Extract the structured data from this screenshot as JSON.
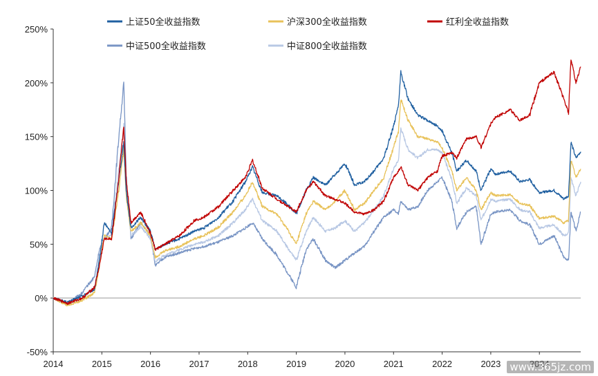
{
  "chart_data": {
    "type": "line",
    "title": "",
    "xlabel": "",
    "ylabel": "",
    "x_ticks": [
      "2014",
      "2015",
      "2016",
      "2017",
      "2018",
      "2019",
      "2020",
      "2021",
      "2022",
      "2023",
      "2024"
    ],
    "y_ticks": [
      "-50%",
      "0%",
      "50%",
      "100%",
      "150%",
      "200%",
      "250%"
    ],
    "ylim": [
      -50,
      250
    ],
    "xlim": [
      2014.0,
      2024.85
    ],
    "legend_position": "top",
    "series": [
      {
        "name": "上证50全收益指数",
        "color": "#1f5fa0",
        "points": [
          [
            2014.0,
            0
          ],
          [
            2014.3,
            -4
          ],
          [
            2014.6,
            2
          ],
          [
            2014.85,
            8
          ],
          [
            2014.95,
            35
          ],
          [
            2015.05,
            70
          ],
          [
            2015.2,
            60
          ],
          [
            2015.35,
            110
          ],
          [
            2015.45,
            145
          ],
          [
            2015.5,
            100
          ],
          [
            2015.6,
            65
          ],
          [
            2015.8,
            75
          ],
          [
            2016.0,
            62
          ],
          [
            2016.1,
            45
          ],
          [
            2016.3,
            50
          ],
          [
            2016.6,
            55
          ],
          [
            2016.9,
            62
          ],
          [
            2017.1,
            65
          ],
          [
            2017.4,
            75
          ],
          [
            2017.7,
            90
          ],
          [
            2017.95,
            108
          ],
          [
            2018.1,
            122
          ],
          [
            2018.3,
            98
          ],
          [
            2018.6,
            95
          ],
          [
            2018.8,
            88
          ],
          [
            2019.0,
            78
          ],
          [
            2019.2,
            100
          ],
          [
            2019.35,
            112
          ],
          [
            2019.6,
            105
          ],
          [
            2019.8,
            115
          ],
          [
            2020.0,
            125
          ],
          [
            2020.2,
            105
          ],
          [
            2020.4,
            108
          ],
          [
            2020.6,
            118
          ],
          [
            2020.8,
            130
          ],
          [
            2021.0,
            160
          ],
          [
            2021.1,
            178
          ],
          [
            2021.15,
            210
          ],
          [
            2021.3,
            185
          ],
          [
            2021.5,
            170
          ],
          [
            2021.7,
            165
          ],
          [
            2021.9,
            160
          ],
          [
            2022.0,
            155
          ],
          [
            2022.2,
            135
          ],
          [
            2022.3,
            118
          ],
          [
            2022.5,
            128
          ],
          [
            2022.7,
            118
          ],
          [
            2022.8,
            100
          ],
          [
            2023.0,
            120
          ],
          [
            2023.1,
            115
          ],
          [
            2023.4,
            118
          ],
          [
            2023.6,
            108
          ],
          [
            2023.8,
            110
          ],
          [
            2024.0,
            98
          ],
          [
            2024.3,
            100
          ],
          [
            2024.5,
            92
          ],
          [
            2024.6,
            95
          ],
          [
            2024.65,
            145
          ],
          [
            2024.75,
            130
          ],
          [
            2024.85,
            136
          ]
        ]
      },
      {
        "name": "沪深300全收益指数",
        "color": "#e8c25a",
        "points": [
          [
            2014.0,
            0
          ],
          [
            2014.3,
            -7
          ],
          [
            2014.6,
            -2
          ],
          [
            2014.85,
            5
          ],
          [
            2014.95,
            30
          ],
          [
            2015.05,
            58
          ],
          [
            2015.2,
            55
          ],
          [
            2015.35,
            100
          ],
          [
            2015.45,
            138
          ],
          [
            2015.5,
            95
          ],
          [
            2015.6,
            62
          ],
          [
            2015.8,
            70
          ],
          [
            2016.0,
            58
          ],
          [
            2016.1,
            38
          ],
          [
            2016.3,
            44
          ],
          [
            2016.6,
            48
          ],
          [
            2016.9,
            55
          ],
          [
            2017.1,
            58
          ],
          [
            2017.4,
            66
          ],
          [
            2017.7,
            80
          ],
          [
            2017.95,
            95
          ],
          [
            2018.1,
            108
          ],
          [
            2018.3,
            85
          ],
          [
            2018.6,
            78
          ],
          [
            2018.8,
            65
          ],
          [
            2019.0,
            50
          ],
          [
            2019.2,
            78
          ],
          [
            2019.35,
            90
          ],
          [
            2019.6,
            82
          ],
          [
            2019.8,
            90
          ],
          [
            2020.0,
            100
          ],
          [
            2020.2,
            82
          ],
          [
            2020.4,
            88
          ],
          [
            2020.6,
            100
          ],
          [
            2020.8,
            112
          ],
          [
            2021.0,
            140
          ],
          [
            2021.1,
            155
          ],
          [
            2021.15,
            185
          ],
          [
            2021.3,
            165
          ],
          [
            2021.5,
            150
          ],
          [
            2021.7,
            148
          ],
          [
            2021.9,
            145
          ],
          [
            2022.0,
            140
          ],
          [
            2022.2,
            118
          ],
          [
            2022.3,
            100
          ],
          [
            2022.5,
            112
          ],
          [
            2022.7,
            100
          ],
          [
            2022.8,
            82
          ],
          [
            2023.0,
            98
          ],
          [
            2023.1,
            95
          ],
          [
            2023.4,
            96
          ],
          [
            2023.6,
            88
          ],
          [
            2023.8,
            86
          ],
          [
            2024.0,
            74
          ],
          [
            2024.3,
            76
          ],
          [
            2024.5,
            70
          ],
          [
            2024.6,
            72
          ],
          [
            2024.65,
            128
          ],
          [
            2024.75,
            112
          ],
          [
            2024.85,
            120
          ]
        ]
      },
      {
        "name": "红利全收益指数",
        "color": "#c00000",
        "points": [
          [
            2014.0,
            0
          ],
          [
            2014.3,
            -5
          ],
          [
            2014.6,
            0
          ],
          [
            2014.85,
            10
          ],
          [
            2014.95,
            30
          ],
          [
            2015.05,
            55
          ],
          [
            2015.2,
            55
          ],
          [
            2015.35,
            110
          ],
          [
            2015.45,
            160
          ],
          [
            2015.5,
            110
          ],
          [
            2015.6,
            70
          ],
          [
            2015.8,
            80
          ],
          [
            2016.0,
            60
          ],
          [
            2016.1,
            45
          ],
          [
            2016.3,
            50
          ],
          [
            2016.6,
            58
          ],
          [
            2016.9,
            72
          ],
          [
            2017.1,
            75
          ],
          [
            2017.4,
            85
          ],
          [
            2017.7,
            100
          ],
          [
            2017.95,
            112
          ],
          [
            2018.1,
            128
          ],
          [
            2018.3,
            102
          ],
          [
            2018.6,
            92
          ],
          [
            2018.8,
            86
          ],
          [
            2019.0,
            80
          ],
          [
            2019.2,
            100
          ],
          [
            2019.35,
            108
          ],
          [
            2019.6,
            95
          ],
          [
            2019.8,
            92
          ],
          [
            2020.0,
            88
          ],
          [
            2020.2,
            80
          ],
          [
            2020.4,
            78
          ],
          [
            2020.6,
            82
          ],
          [
            2020.8,
            90
          ],
          [
            2021.0,
            112
          ],
          [
            2021.1,
            118
          ],
          [
            2021.15,
            122
          ],
          [
            2021.3,
            105
          ],
          [
            2021.5,
            100
          ],
          [
            2021.7,
            112
          ],
          [
            2021.9,
            118
          ],
          [
            2022.0,
            132
          ],
          [
            2022.2,
            135
          ],
          [
            2022.3,
            130
          ],
          [
            2022.5,
            148
          ],
          [
            2022.7,
            150
          ],
          [
            2022.8,
            140
          ],
          [
            2023.0,
            162
          ],
          [
            2023.1,
            168
          ],
          [
            2023.4,
            175
          ],
          [
            2023.6,
            165
          ],
          [
            2023.8,
            170
          ],
          [
            2024.0,
            200
          ],
          [
            2024.3,
            210
          ],
          [
            2024.5,
            185
          ],
          [
            2024.6,
            172
          ],
          [
            2024.65,
            222
          ],
          [
            2024.75,
            200
          ],
          [
            2024.85,
            215
          ]
        ]
      },
      {
        "name": "中证500全收益指数",
        "color": "#7894c4",
        "points": [
          [
            2014.0,
            0
          ],
          [
            2014.3,
            -5
          ],
          [
            2014.6,
            5
          ],
          [
            2014.85,
            20
          ],
          [
            2014.95,
            45
          ],
          [
            2015.05,
            55
          ],
          [
            2015.2,
            65
          ],
          [
            2015.35,
            150
          ],
          [
            2015.45,
            200
          ],
          [
            2015.5,
            115
          ],
          [
            2015.6,
            55
          ],
          [
            2015.8,
            70
          ],
          [
            2016.0,
            58
          ],
          [
            2016.1,
            30
          ],
          [
            2016.3,
            38
          ],
          [
            2016.6,
            42
          ],
          [
            2016.9,
            46
          ],
          [
            2017.1,
            48
          ],
          [
            2017.4,
            52
          ],
          [
            2017.7,
            58
          ],
          [
            2017.95,
            65
          ],
          [
            2018.1,
            70
          ],
          [
            2018.3,
            55
          ],
          [
            2018.6,
            40
          ],
          [
            2018.8,
            25
          ],
          [
            2019.0,
            10
          ],
          [
            2019.2,
            45
          ],
          [
            2019.35,
            55
          ],
          [
            2019.6,
            35
          ],
          [
            2019.8,
            28
          ],
          [
            2020.0,
            35
          ],
          [
            2020.2,
            42
          ],
          [
            2020.4,
            48
          ],
          [
            2020.6,
            62
          ],
          [
            2020.8,
            75
          ],
          [
            2021.0,
            82
          ],
          [
            2021.1,
            78
          ],
          [
            2021.15,
            90
          ],
          [
            2021.3,
            82
          ],
          [
            2021.5,
            85
          ],
          [
            2021.7,
            100
          ],
          [
            2021.9,
            108
          ],
          [
            2022.0,
            112
          ],
          [
            2022.2,
            90
          ],
          [
            2022.3,
            65
          ],
          [
            2022.5,
            80
          ],
          [
            2022.7,
            85
          ],
          [
            2022.8,
            50
          ],
          [
            2023.0,
            78
          ],
          [
            2023.1,
            80
          ],
          [
            2023.4,
            82
          ],
          [
            2023.6,
            72
          ],
          [
            2023.8,
            68
          ],
          [
            2024.0,
            50
          ],
          [
            2024.3,
            58
          ],
          [
            2024.5,
            38
          ],
          [
            2024.6,
            35
          ],
          [
            2024.65,
            80
          ],
          [
            2024.75,
            62
          ],
          [
            2024.85,
            80
          ]
        ]
      },
      {
        "name": "中证800全收益指数",
        "color": "#b8c8e4",
        "points": [
          [
            2014.0,
            0
          ],
          [
            2014.3,
            -6
          ],
          [
            2014.6,
            0
          ],
          [
            2014.85,
            10
          ],
          [
            2014.95,
            35
          ],
          [
            2015.05,
            55
          ],
          [
            2015.2,
            58
          ],
          [
            2015.35,
            120
          ],
          [
            2015.45,
            160
          ],
          [
            2015.5,
            100
          ],
          [
            2015.6,
            58
          ],
          [
            2015.8,
            66
          ],
          [
            2016.0,
            55
          ],
          [
            2016.1,
            34
          ],
          [
            2016.3,
            40
          ],
          [
            2016.6,
            45
          ],
          [
            2016.9,
            50
          ],
          [
            2017.1,
            52
          ],
          [
            2017.4,
            58
          ],
          [
            2017.7,
            70
          ],
          [
            2017.95,
            82
          ],
          [
            2018.1,
            92
          ],
          [
            2018.3,
            72
          ],
          [
            2018.6,
            62
          ],
          [
            2018.8,
            48
          ],
          [
            2019.0,
            35
          ],
          [
            2019.2,
            62
          ],
          [
            2019.35,
            75
          ],
          [
            2019.6,
            62
          ],
          [
            2019.8,
            65
          ],
          [
            2020.0,
            72
          ],
          [
            2020.2,
            62
          ],
          [
            2020.4,
            70
          ],
          [
            2020.6,
            82
          ],
          [
            2020.8,
            95
          ],
          [
            2021.0,
            120
          ],
          [
            2021.1,
            128
          ],
          [
            2021.15,
            158
          ],
          [
            2021.3,
            138
          ],
          [
            2021.5,
            130
          ],
          [
            2021.7,
            138
          ],
          [
            2021.9,
            138
          ],
          [
            2022.0,
            135
          ],
          [
            2022.2,
            110
          ],
          [
            2022.3,
            88
          ],
          [
            2022.5,
            102
          ],
          [
            2022.7,
            95
          ],
          [
            2022.8,
            72
          ],
          [
            2023.0,
            92
          ],
          [
            2023.1,
            90
          ],
          [
            2023.4,
            92
          ],
          [
            2023.6,
            82
          ],
          [
            2023.8,
            80
          ],
          [
            2024.0,
            65
          ],
          [
            2024.3,
            68
          ],
          [
            2024.5,
            58
          ],
          [
            2024.6,
            60
          ],
          [
            2024.65,
            112
          ],
          [
            2024.75,
            95
          ],
          [
            2024.85,
            108
          ]
        ]
      }
    ]
  },
  "watermark": "www.365jz.com"
}
